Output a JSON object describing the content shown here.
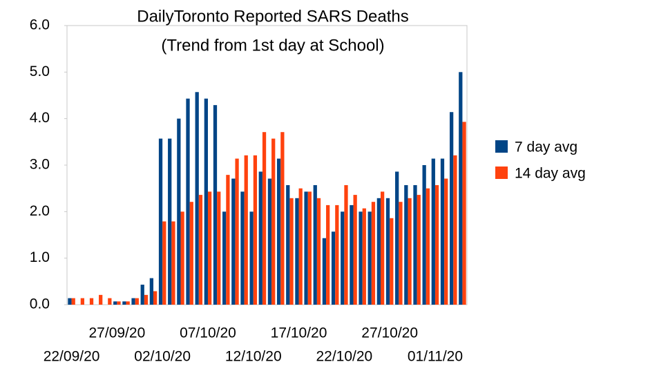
{
  "chart_data": {
    "type": "bar",
    "title": "DailyToronto Reported SARS Deaths",
    "subtitle": "(Trend from 1st day at School)",
    "categories": [
      "22/09/20",
      null,
      null,
      null,
      null,
      "27/09/20",
      null,
      null,
      null,
      null,
      "02/10/20",
      null,
      null,
      null,
      null,
      "07/10/20",
      null,
      null,
      null,
      null,
      "12/10/20",
      null,
      null,
      null,
      null,
      "17/10/20",
      null,
      null,
      null,
      null,
      "22/10/20",
      null,
      null,
      null,
      null,
      "27/10/20",
      null,
      null,
      null,
      null,
      "01/11/20",
      null,
      null,
      null
    ],
    "series": [
      {
        "name": "7 day avg",
        "color": "#004586",
        "values": [
          0.14,
          null,
          null,
          null,
          null,
          0.07,
          0.07,
          0.14,
          0.43,
          0.57,
          3.57,
          3.57,
          4.0,
          4.43,
          4.57,
          4.43,
          4.29,
          2.0,
          2.71,
          2.43,
          2.0,
          2.86,
          2.71,
          3.14,
          2.57,
          2.29,
          2.43,
          2.57,
          1.43,
          1.57,
          2.0,
          2.14,
          2.0,
          2.0,
          2.29,
          2.29,
          2.86,
          2.57,
          2.57,
          3.0,
          3.14,
          3.14,
          4.14,
          5.0
        ]
      },
      {
        "name": "14 day avg",
        "color": "#ff420e",
        "values": [
          0.14,
          0.14,
          0.14,
          0.21,
          0.14,
          0.07,
          0.07,
          0.14,
          0.21,
          0.29,
          1.79,
          1.79,
          2.0,
          2.21,
          2.36,
          2.43,
          2.43,
          2.79,
          3.14,
          3.21,
          3.21,
          3.71,
          3.57,
          3.71,
          2.29,
          2.5,
          2.43,
          2.29,
          2.14,
          2.14,
          2.57,
          2.36,
          2.07,
          2.21,
          2.43,
          1.86,
          2.21,
          2.29,
          2.36,
          2.5,
          2.57,
          2.71,
          3.21,
          3.93
        ]
      }
    ],
    "ylim": [
      0,
      6
    ],
    "yticks": [
      {
        "value": 0,
        "label": "0.0"
      },
      {
        "value": 1,
        "label": "1.0"
      },
      {
        "value": 2,
        "label": "2.0"
      },
      {
        "value": 3,
        "label": "3.0"
      },
      {
        "value": 4,
        "label": "4.0"
      },
      {
        "value": 5,
        "label": "5.0"
      },
      {
        "value": 6,
        "label": "6.0"
      }
    ],
    "grid": false,
    "legend": "right"
  }
}
